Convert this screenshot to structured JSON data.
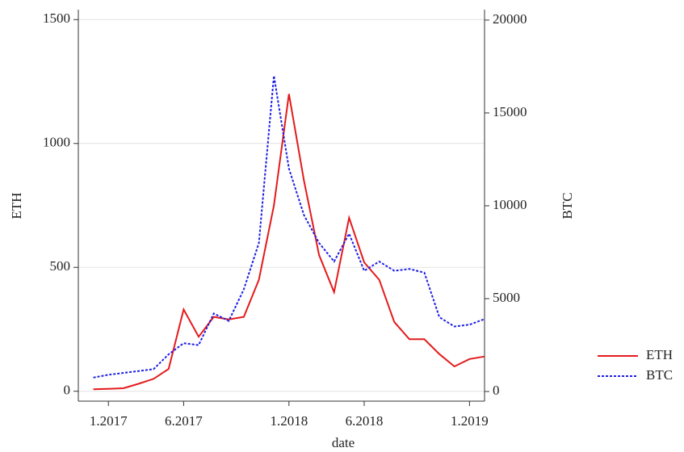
{
  "chart_data": {
    "type": "line",
    "x_label": "date",
    "y_label": "ETH",
    "y2_label": "BTC",
    "x": [
      "2016-12",
      "2017-01",
      "2017-02",
      "2017-03",
      "2017-04",
      "2017-05",
      "2017-06",
      "2017-07",
      "2017-08",
      "2017-09",
      "2017-10",
      "2017-11",
      "2017-12",
      "2018-01",
      "2018-02",
      "2018-03",
      "2018-04",
      "2018-05",
      "2018-06",
      "2018-07",
      "2018-08",
      "2018-09",
      "2018-10",
      "2018-11",
      "2018-12",
      "2019-01",
      "2019-02"
    ],
    "series": [
      {
        "name": "ETH",
        "color": "#e41a1c",
        "dash": "solid",
        "axis": "y",
        "values": [
          8,
          10,
          12,
          30,
          50,
          90,
          330,
          220,
          300,
          290,
          300,
          450,
          750,
          1200,
          850,
          550,
          400,
          700,
          520,
          450,
          280,
          210,
          210,
          150,
          100,
          130,
          140
        ]
      },
      {
        "name": "BTC",
        "color": "#1f1fe6",
        "dash": "dotted",
        "axis": "y2",
        "values": [
          750,
          900,
          1000,
          1100,
          1200,
          2000,
          2600,
          2500,
          4200,
          3800,
          5500,
          8000,
          17000,
          12000,
          9500,
          8000,
          7000,
          8500,
          6500,
          7000,
          6500,
          6600,
          6400,
          4000,
          3500,
          3600,
          3900
        ]
      }
    ],
    "xlim": [
      "2016-11",
      "2019-02"
    ],
    "xticks": [
      {
        "value": "2017-01",
        "label": "1.2017"
      },
      {
        "value": "2017-06",
        "label": "6.2017"
      },
      {
        "value": "2018-01",
        "label": "1.2018"
      },
      {
        "value": "2018-06",
        "label": "6.2018"
      },
      {
        "value": "2019-01",
        "label": "1.2019"
      }
    ],
    "ylim": [
      -40,
      1540
    ],
    "yticks": [
      0,
      500,
      1000,
      1500
    ],
    "y2lim": [
      -520,
      20560
    ],
    "y2ticks": [
      0,
      5000,
      10000,
      15000,
      20000
    ],
    "grid": true,
    "legend": "right"
  }
}
